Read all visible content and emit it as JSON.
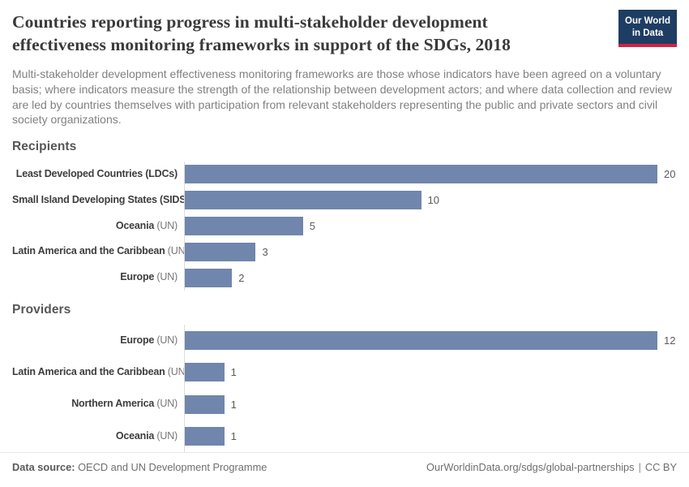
{
  "header": {
    "title": "Countries reporting progress in multi-stakeholder development effectiveness monitoring frameworks in support of the SDGs, 2018",
    "subtitle": "Multi-stakeholder development effectiveness monitoring frameworks are those whose indicators have been agreed on a voluntary basis; where indicators measure the strength of the relationship between development actors; and where data collection and review are led by countries themselves with participation from relevant stakeholders representing the public and private sectors and civil society organizations.",
    "logo_line1": "Our World",
    "logo_line2": "in Data"
  },
  "chart_data": [
    {
      "type": "bar",
      "orientation": "horizontal",
      "title": "Recipients",
      "categories": [
        "Least Developed Countries (LDCs)",
        "Small Island Developing States (SIDS)",
        "Oceania (UN)",
        "Latin America and the Caribbean (UN)",
        "Europe (UN)"
      ],
      "values": [
        20,
        10,
        5,
        3,
        2
      ],
      "xlim": [
        0,
        20
      ],
      "data_labels": true,
      "grid": false,
      "legend": false
    },
    {
      "type": "bar",
      "orientation": "horizontal",
      "title": "Providers",
      "categories": [
        "Europe (UN)",
        "Latin America and the Caribbean (UN)",
        "Northern America (UN)",
        "Oceania (UN)"
      ],
      "values": [
        12,
        1,
        1,
        1
      ],
      "xlim": [
        0,
        12
      ],
      "data_labels": true,
      "grid": false,
      "legend": false
    }
  ],
  "colors": {
    "bar": "#7086ac",
    "axis_line": "#dcdcdc",
    "title_text": "#3a3a3a",
    "subtitle_text": "#808080",
    "logo_bg": "#1d3d63",
    "logo_accent": "#cf2346"
  },
  "footer": {
    "datasource_label": "Data source:",
    "datasource_value": " OECD and UN Development Programme",
    "link": "OurWorldinData.org/sdgs/global-partnerships",
    "separator": "|",
    "license": "CC BY"
  }
}
